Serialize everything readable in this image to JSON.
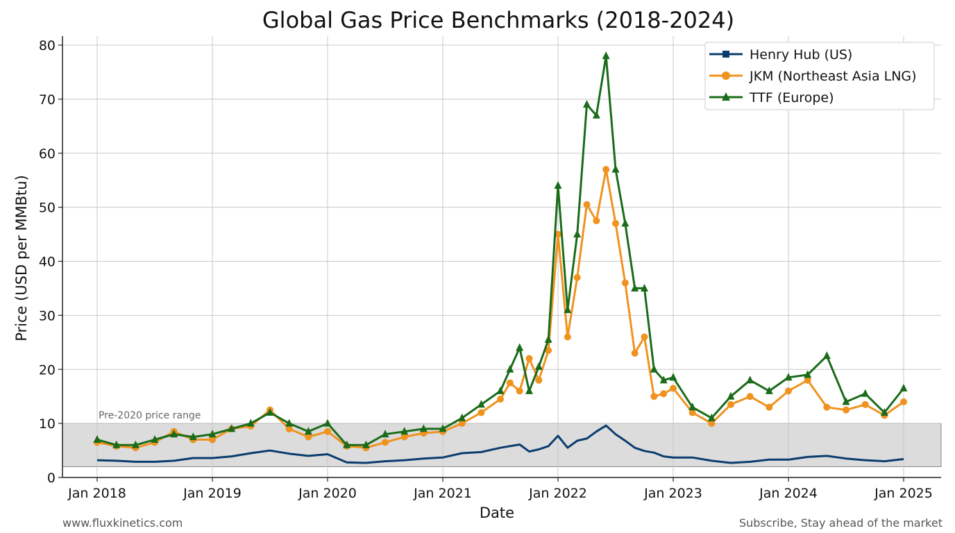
{
  "chart_data": {
    "type": "line",
    "title": "Global Gas Price Benchmarks (2018-2024)",
    "xlabel": "Date",
    "ylabel": "Price (USD per MMBtu)",
    "ylim": [
      0,
      80
    ],
    "xlim": [
      "Jan 2018",
      "Jan 2025"
    ],
    "x_ticks": [
      "Jan 2018",
      "Jan 2019",
      "Jan 2020",
      "Jan 2021",
      "Jan 2022",
      "Jan 2023",
      "Jan 2024",
      "Jan 2025"
    ],
    "y_ticks": [
      0,
      10,
      20,
      30,
      40,
      50,
      60,
      70,
      80
    ],
    "grid": true,
    "legend_position": "top-right",
    "annotations": [
      {
        "text": "Pre-2020 price range",
        "y_range": [
          2,
          10
        ]
      }
    ],
    "series": [
      {
        "name": "Henry Hub (US)",
        "color": "#0b3c6e",
        "marker": "square",
        "x": [
          "2018-01",
          "2018-03",
          "2018-05",
          "2018-07",
          "2018-09",
          "2018-11",
          "2019-01",
          "2019-03",
          "2019-05",
          "2019-07",
          "2019-09",
          "2019-11",
          "2020-01",
          "2020-03",
          "2020-05",
          "2020-07",
          "2020-09",
          "2020-11",
          "2021-01",
          "2021-03",
          "2021-05",
          "2021-07",
          "2021-09",
          "2021-10",
          "2021-11",
          "2021-12",
          "2022-01",
          "2022-02",
          "2022-03",
          "2022-04",
          "2022-05",
          "2022-06",
          "2022-07",
          "2022-08",
          "2022-09",
          "2022-10",
          "2022-11",
          "2022-12",
          "2023-01",
          "2023-03",
          "2023-05",
          "2023-07",
          "2023-09",
          "2023-11",
          "2024-01",
          "2024-03",
          "2024-05",
          "2024-07",
          "2024-09",
          "2024-11",
          "2025-01"
        ],
        "values": [
          3.2,
          3.1,
          2.9,
          2.9,
          3.1,
          3.6,
          3.6,
          3.9,
          4.5,
          5.0,
          4.4,
          4.0,
          4.3,
          2.8,
          2.7,
          3.0,
          3.2,
          3.5,
          3.7,
          4.5,
          4.7,
          5.5,
          6.1,
          4.8,
          5.2,
          5.8,
          7.7,
          5.5,
          6.8,
          7.2,
          8.5,
          9.6,
          8.0,
          6.8,
          5.5,
          4.9,
          4.6,
          3.9,
          3.7,
          3.7,
          3.1,
          2.7,
          2.9,
          3.3,
          3.3,
          3.8,
          4.0,
          3.5,
          3.2,
          3.0,
          3.4
        ]
      },
      {
        "name": "JKM (Northeast Asia LNG)",
        "color": "#f0921e",
        "marker": "circle",
        "x": [
          "2018-01",
          "2018-03",
          "2018-05",
          "2018-07",
          "2018-09",
          "2018-11",
          "2019-01",
          "2019-03",
          "2019-05",
          "2019-07",
          "2019-09",
          "2019-11",
          "2020-01",
          "2020-03",
          "2020-05",
          "2020-07",
          "2020-09",
          "2020-11",
          "2021-01",
          "2021-03",
          "2021-05",
          "2021-07",
          "2021-08",
          "2021-09",
          "2021-10",
          "2021-11",
          "2021-12",
          "2022-01",
          "2022-02",
          "2022-03",
          "2022-04",
          "2022-05",
          "2022-06",
          "2022-07",
          "2022-08",
          "2022-09",
          "2022-10",
          "2022-11",
          "2022-12",
          "2023-01",
          "2023-03",
          "2023-05",
          "2023-07",
          "2023-09",
          "2023-11",
          "2024-01",
          "2024-03",
          "2024-05",
          "2024-07",
          "2024-09",
          "2024-11",
          "2025-01"
        ],
        "values": [
          6.5,
          5.8,
          5.5,
          6.5,
          8.5,
          7.0,
          7.0,
          9.0,
          9.5,
          12.5,
          9.0,
          7.5,
          8.5,
          5.8,
          5.5,
          6.5,
          7.5,
          8.2,
          8.5,
          10.0,
          12.0,
          14.5,
          17.5,
          16.0,
          22.0,
          18.0,
          23.5,
          45.0,
          26.0,
          37.0,
          50.5,
          47.5,
          57.0,
          47.0,
          36.0,
          23.0,
          26.0,
          15.0,
          15.5,
          16.5,
          12.0,
          10.0,
          13.5,
          15.0,
          13.0,
          16.0,
          18.0,
          13.0,
          12.5,
          13.5,
          11.5,
          14.0
        ]
      },
      {
        "name": "TTF (Europe)",
        "color": "#1a6b1a",
        "marker": "triangle",
        "x": [
          "2018-01",
          "2018-03",
          "2018-05",
          "2018-07",
          "2018-09",
          "2018-11",
          "2019-01",
          "2019-03",
          "2019-05",
          "2019-07",
          "2019-09",
          "2019-11",
          "2020-01",
          "2020-03",
          "2020-05",
          "2020-07",
          "2020-09",
          "2020-11",
          "2021-01",
          "2021-03",
          "2021-05",
          "2021-07",
          "2021-08",
          "2021-09",
          "2021-10",
          "2021-11",
          "2021-12",
          "2022-01",
          "2022-02",
          "2022-03",
          "2022-04",
          "2022-05",
          "2022-06",
          "2022-07",
          "2022-08",
          "2022-09",
          "2022-10",
          "2022-11",
          "2022-12",
          "2023-01",
          "2023-03",
          "2023-05",
          "2023-07",
          "2023-09",
          "2023-11",
          "2024-01",
          "2024-03",
          "2024-05",
          "2024-07",
          "2024-09",
          "2024-11",
          "2025-01"
        ],
        "values": [
          7.0,
          6.0,
          6.0,
          7.0,
          8.0,
          7.5,
          8.0,
          9.0,
          10.0,
          12.0,
          10.0,
          8.5,
          10.0,
          6.0,
          6.0,
          8.0,
          8.5,
          9.0,
          9.0,
          11.0,
          13.5,
          16.0,
          20.0,
          24.0,
          16.0,
          20.5,
          25.5,
          54.0,
          31.0,
          45.0,
          69.0,
          67.0,
          78.0,
          57.0,
          47.0,
          35.0,
          35.0,
          20.0,
          18.0,
          18.5,
          13.0,
          11.0,
          15.0,
          18.0,
          16.0,
          18.5,
          19.0,
          22.5,
          14.0,
          15.5,
          12.0,
          16.5
        ]
      }
    ]
  },
  "footer": {
    "left": "www.fluxkinetics.com",
    "right": "Subscribe, Stay ahead of the market"
  }
}
